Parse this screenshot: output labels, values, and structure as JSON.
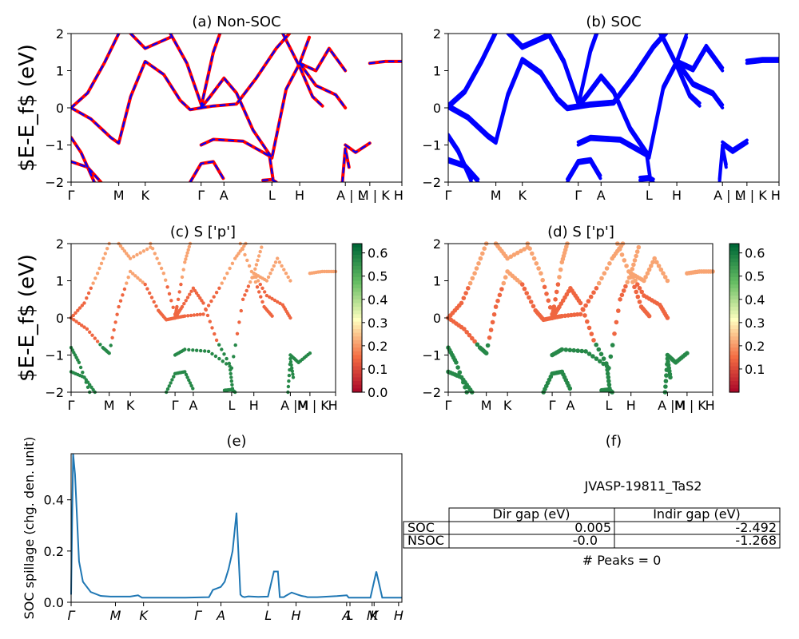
{
  "chart_data": [
    {
      "id": "a",
      "type": "line",
      "title": "(a) Non-SOC",
      "ylabel": "$E-E_f$ (eV)",
      "ylim": [
        -2,
        2
      ],
      "yticks": [
        "2",
        "1",
        "0",
        "−1",
        "−2"
      ],
      "kpoint_labels": [
        "Γ",
        "M",
        "K",
        "Γ",
        "A",
        "L",
        "H",
        "A | L",
        "M | K",
        "H"
      ],
      "colors": {
        "band": "#ff0000",
        "overlay": "#0000ff"
      }
    },
    {
      "id": "b",
      "type": "line",
      "title": "(b) SOC",
      "ylim": [
        -2,
        2
      ],
      "yticks": [
        "2",
        "1",
        "0",
        "−1",
        "−2"
      ],
      "kpoint_labels": [
        "Γ",
        "M",
        "K",
        "Γ",
        "A",
        "L",
        "H",
        "A | L",
        "M | K",
        "H"
      ],
      "colors": {
        "band": "#0000ff"
      }
    },
    {
      "id": "c",
      "type": "scatter",
      "title": "(c)  S ['p']",
      "ylabel": "$E-E_f$ (eV)",
      "ylim": [
        -2,
        2
      ],
      "yticks": [
        "2",
        "1",
        "0",
        "−1",
        "−2"
      ],
      "kpoint_labels": [
        "Γ",
        "M",
        "K",
        "Γ",
        "A",
        "L",
        "H",
        "A |M",
        "M | K",
        "H"
      ],
      "colorbar": {
        "colormap": "RdYlGn",
        "ticks": [
          "0.6",
          "0.5",
          "0.4",
          "0.3",
          "0.2",
          "0.1",
          "0.0"
        ],
        "range": [
          0,
          0.64
        ]
      }
    },
    {
      "id": "d",
      "type": "scatter",
      "title": "(d) S ['p']",
      "ylim": [
        -2,
        2
      ],
      "yticks": [
        "2",
        "1",
        "0",
        "−1",
        "−2"
      ],
      "kpoint_labels": [
        "Γ",
        "M",
        "K",
        "Γ",
        "A",
        "L",
        "H",
        "A |M",
        "M | K",
        "H"
      ],
      "colorbar": {
        "colormap": "RdYlGn",
        "ticks": [
          "0.6",
          "0.5",
          "0.4",
          "0.3",
          "0.2",
          "0.1"
        ],
        "range": [
          0,
          0.64
        ]
      }
    },
    {
      "id": "e",
      "type": "line",
      "title": "(e)",
      "ylabel": "SOC spillage (chg. den. unit)",
      "ylim": [
        0,
        0.58
      ],
      "yticks": [
        "0.0",
        "0.2",
        "0.4"
      ],
      "xtick_labels": [
        "Γ",
        "M",
        "K",
        "Γ",
        "A",
        "L",
        "H",
        "A",
        "L",
        "M",
        "K",
        "H"
      ],
      "color": "#1f77b4",
      "x": [
        0,
        1,
        2,
        4,
        6,
        10,
        15,
        20,
        30,
        34,
        36,
        40,
        58,
        70,
        72,
        76,
        78,
        80,
        82,
        84,
        86,
        87,
        88,
        90,
        95,
        100,
        103,
        105,
        106,
        107,
        108,
        109,
        112,
        115,
        117,
        119,
        120,
        121,
        125,
        135,
        140,
        141,
        143,
        150,
        152,
        155,
        158,
        160,
        162,
        164,
        166,
        167,
        168
      ],
      "y": [
        0.03,
        0.58,
        0.5,
        0.16,
        0.08,
        0.04,
        0.025,
        0.022,
        0.022,
        0.027,
        0.018,
        0.018,
        0.018,
        0.02,
        0.048,
        0.06,
        0.08,
        0.13,
        0.2,
        0.35,
        0.03,
        0.022,
        0.02,
        0.023,
        0.021,
        0.022,
        0.12,
        0.12,
        0.02,
        0.02,
        0.02,
        0.025,
        0.038,
        0.03,
        0.025,
        0.022,
        0.02,
        0.02,
        0.02,
        0.024,
        0.027,
        0.018,
        0.018,
        0.018,
        0.018,
        0.12,
        0.018,
        0.018,
        0.018,
        0.018,
        0.018,
        0.018,
        0.018
      ]
    },
    {
      "id": "f",
      "type": "table",
      "title": "(f)",
      "subtitle": "JVASP-19811_TaS2",
      "columns": [
        "Dir gap (eV)",
        "Indir gap (eV)"
      ],
      "rows": [
        {
          "label": "SOC",
          "values": [
            "0.005",
            "-2.492"
          ]
        },
        {
          "label": "NSOC",
          "values": [
            "-0.0",
            "-1.268"
          ]
        }
      ],
      "footer": "# Peaks = 0"
    }
  ]
}
